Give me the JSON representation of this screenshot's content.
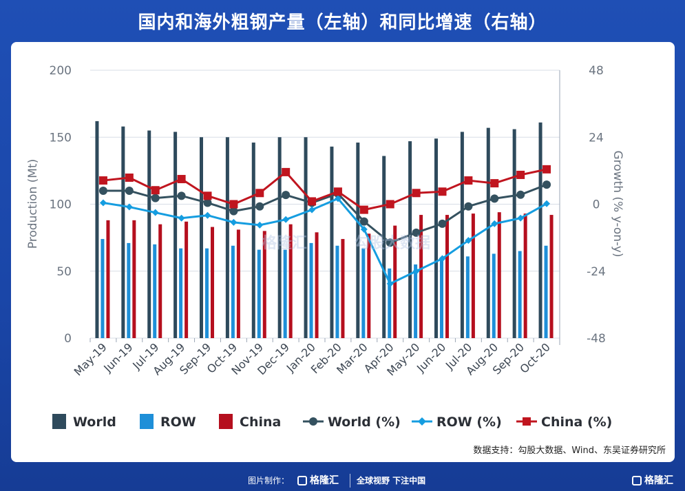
{
  "title": "国内和海外粗钢产量（左轴）和同比增速（右轴）",
  "source": "数据支持：勾股大数据、Wind、东吴证券研究所",
  "footer": {
    "credit": "图片制作：",
    "brand": "格隆汇",
    "slogan": "全球视野 下注中国",
    "brand_right": "格隆汇"
  },
  "watermarks": [
    "格隆汇",
    "勾股大数据"
  ],
  "chart_data": {
    "type": "bar+line",
    "categories": [
      "May-19",
      "Jun-19",
      "Jul-19",
      "Aug-19",
      "Sep-19",
      "Oct-19",
      "Nov-19",
      "Dec-19",
      "Jan-20",
      "Feb-20",
      "Mar-20",
      "Apr-20",
      "May-20",
      "Jun-20",
      "Jul-20",
      "Aug-20",
      "Sep-20",
      "Oct-20"
    ],
    "ylabel": "Production (Mt)",
    "y2label": "Growth (% y-on-y)",
    "ylim": [
      0,
      200
    ],
    "y2lim": [
      -48,
      48
    ],
    "yticks": [
      0,
      50,
      100,
      150,
      200
    ],
    "y2ticks": [
      -48,
      -24,
      0,
      24,
      48
    ],
    "grid": true,
    "legend_position": "bottom",
    "bar_series": [
      {
        "name": "World",
        "color": "#2e4a5c",
        "values": [
          162,
          158,
          155,
          154,
          150,
          150,
          146,
          150,
          150,
          143,
          146,
          136,
          147,
          149,
          154,
          157,
          156,
          161
        ]
      },
      {
        "name": "ROW",
        "color": "#1e8fd8",
        "values": [
          74,
          71,
          70,
          67,
          67,
          69,
          66,
          66,
          71,
          69,
          67,
          52,
          55,
          60,
          61,
          63,
          65,
          69
        ]
      },
      {
        "name": "China",
        "color": "#b50f1e",
        "values": [
          88,
          88,
          85,
          87,
          83,
          81,
          80,
          85,
          79,
          74,
          78,
          84,
          92,
          92,
          93,
          94,
          93,
          92
        ]
      }
    ],
    "line_series": [
      {
        "name": "World (%)",
        "color": "#34515f",
        "marker": "circle",
        "values": [
          4.8,
          4.8,
          2.2,
          3.0,
          0.5,
          -2.5,
          -0.8,
          3.3,
          0.5,
          3.8,
          -6.2,
          -13.8,
          -10.2,
          -7.0,
          -0.8,
          2.0,
          3.4,
          7.0
        ]
      },
      {
        "name": "ROW (%)",
        "color": "#159de0",
        "marker": "diamond",
        "values": [
          0.5,
          -1.0,
          -3.0,
          -5.0,
          -4.0,
          -6.5,
          -7.5,
          -5.5,
          -2.0,
          2.0,
          -9.0,
          -28.5,
          -24.0,
          -19.5,
          -13.0,
          -7.0,
          -5.0,
          0.2
        ]
      },
      {
        "name": "China (%)",
        "color": "#c0151f",
        "marker": "square",
        "values": [
          8.5,
          9.5,
          5.0,
          9.0,
          3.0,
          0.0,
          4.0,
          11.5,
          1.0,
          4.5,
          -2.0,
          0.0,
          4.0,
          4.5,
          8.5,
          7.5,
          10.5,
          12.5
        ]
      }
    ]
  }
}
